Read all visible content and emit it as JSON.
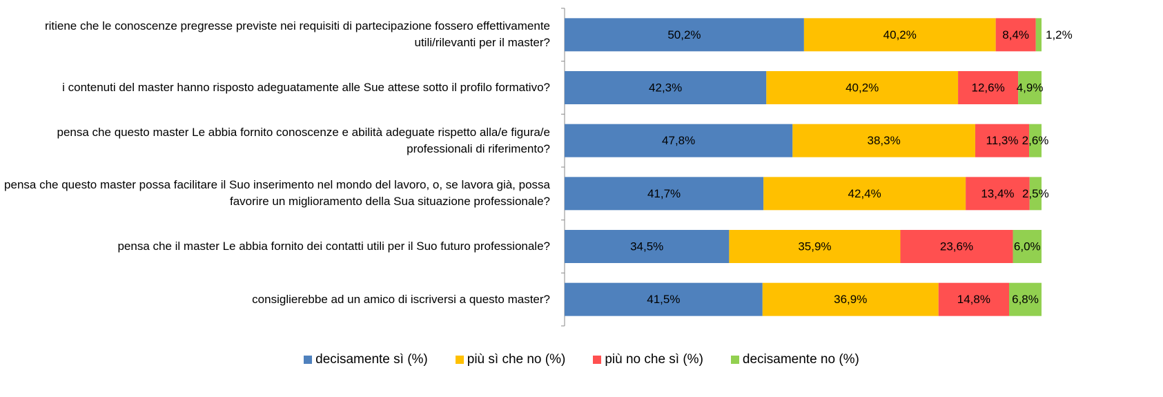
{
  "chart_data": {
    "type": "stacked-bar-horizontal",
    "categories": [
      "ritiene che le conoscenze pregresse previste nei requisiti di partecipazione fossero effettivamente utili/rilevanti per il master?",
      "i contenuti del master hanno risposto adeguatamente alle Sue attese sotto il profilo formativo?",
      "pensa che questo master Le abbia fornito conoscenze e abilità adeguate rispetto alla/e figura/e professionali di riferimento?",
      "pensa che questo master possa facilitare il Suo inserimento nel mondo del lavoro, o, se lavora già, possa favorire un miglioramento della Sua situazione professionale?",
      "pensa che il master Le abbia fornito dei contatti utili per il Suo futuro professionale?",
      "consiglierebbe ad un amico di iscriversi a questo master?"
    ],
    "series": [
      {
        "name": "decisamente sì (%)",
        "color": "#4f81bd",
        "values": [
          50.2,
          42.3,
          47.8,
          41.7,
          34.5,
          41.5
        ],
        "value_labels": [
          "50,2%",
          "42,3%",
          "47,8%",
          "41,7%",
          "34,5%",
          "41,5%"
        ]
      },
      {
        "name": "più sì che no (%)",
        "color": "#ffc000",
        "values": [
          40.2,
          40.2,
          38.3,
          42.4,
          35.9,
          36.9
        ],
        "value_labels": [
          "40,2%",
          "40,2%",
          "38,3%",
          "42,4%",
          "35,9%",
          "36,9%"
        ]
      },
      {
        "name": "più no che sì (%)",
        "color": "#ff5050",
        "values": [
          8.4,
          12.6,
          11.3,
          13.4,
          23.6,
          14.8
        ],
        "value_labels": [
          "8,4%",
          "12,6%",
          "11,3%",
          "13,4%",
          "23,6%",
          "14,8%"
        ]
      },
      {
        "name": "decisamente no (%)",
        "color": "#92d050",
        "values": [
          1.2,
          4.9,
          2.6,
          2.5,
          6.0,
          6.8
        ],
        "value_labels": [
          "1,2%",
          "4,9%",
          "2,6%",
          "2,5%",
          "6,0%",
          "6,8%"
        ]
      }
    ]
  }
}
